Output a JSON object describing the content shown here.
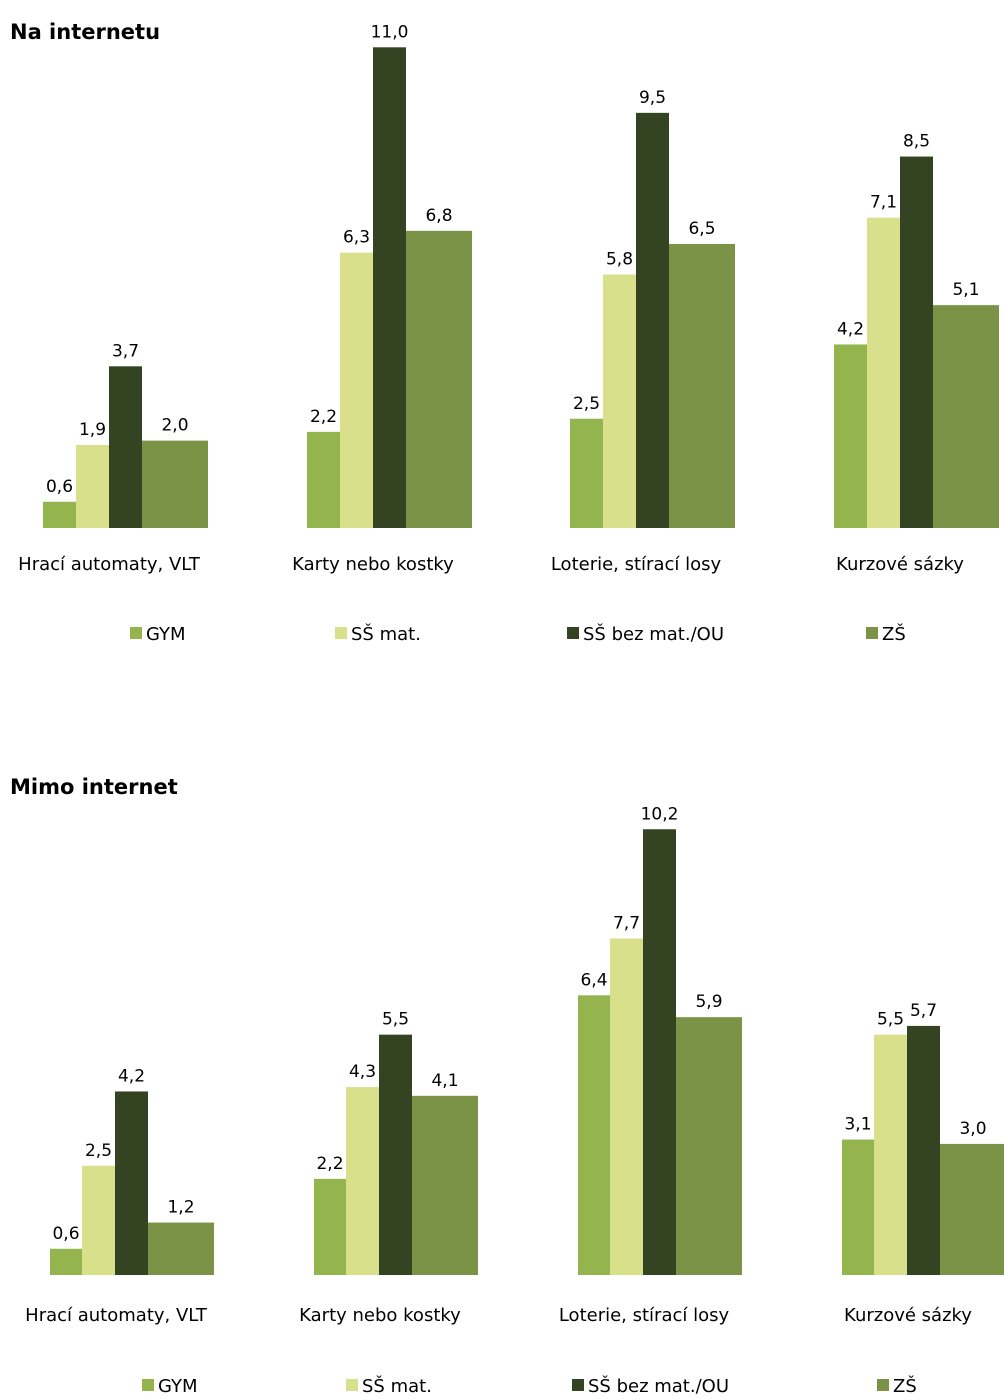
{
  "colors": [
    "#94b44d",
    "#d8e08c",
    "#344321",
    "#7a9346"
  ],
  "chart_data": [
    {
      "type": "bar",
      "title": "Na internetu",
      "categories": [
        "Hrací automaty, VLT",
        "Karty nebo kostky",
        "Loterie, stírací losy",
        "Kurzové sázky"
      ],
      "series": [
        {
          "name": "GYM",
          "values": [
            0.6,
            2.2,
            2.5,
            4.2
          ],
          "labels": [
            "0,6",
            "2,2",
            "2,5",
            "4,2"
          ]
        },
        {
          "name": "SŠ mat.",
          "values": [
            1.9,
            6.3,
            5.8,
            7.1
          ],
          "labels": [
            "1,9",
            "6,3",
            "5,8",
            "7,1"
          ]
        },
        {
          "name": "SŠ bez mat./OU",
          "values": [
            3.7,
            11.0,
            9.5,
            8.5
          ],
          "labels": [
            "3,7",
            "11,0",
            "9,5",
            "8,5"
          ]
        },
        {
          "name": "ZŠ",
          "values": [
            2.0,
            6.8,
            6.5,
            5.1
          ],
          "labels": [
            "2,0",
            "6,8",
            "6,5",
            "5,1"
          ]
        }
      ],
      "ylim": [
        0,
        11
      ],
      "legend": "bottom",
      "grid": false
    },
    {
      "type": "bar",
      "title": "Mimo internet",
      "categories": [
        "Hrací automaty, VLT",
        "Karty nebo kostky",
        "Loterie, stírací losy",
        "Kurzové sázky"
      ],
      "series": [
        {
          "name": "GYM",
          "values": [
            0.6,
            2.2,
            6.4,
            3.1
          ],
          "labels": [
            "0,6",
            "2,2",
            "6,4",
            "3,1"
          ]
        },
        {
          "name": "SŠ mat.",
          "values": [
            2.5,
            4.3,
            7.7,
            5.5
          ],
          "labels": [
            "2,5",
            "4,3",
            "7,7",
            "5,5"
          ]
        },
        {
          "name": "SŠ bez mat./OU",
          "values": [
            4.2,
            5.5,
            10.2,
            5.7
          ],
          "labels": [
            "4,2",
            "5,5",
            "10,2",
            "5,7"
          ]
        },
        {
          "name": "ZŠ",
          "values": [
            1.2,
            4.1,
            5.9,
            3.0
          ],
          "labels": [
            "1,2",
            "4,1",
            "5,9",
            "3,0"
          ]
        }
      ],
      "ylim": [
        0,
        10.2
      ],
      "legend": "bottom",
      "grid": false
    }
  ]
}
